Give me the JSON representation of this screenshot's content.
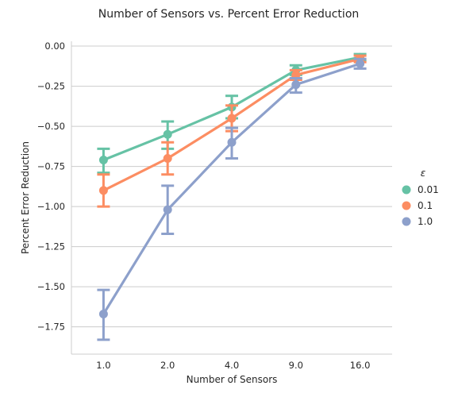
{
  "chart_data": {
    "type": "line",
    "title": "Number of Sensors vs. Percent Error Reduction",
    "xlabel": "Number of Sensors",
    "ylabel": "Percent Error Reduction",
    "categories": [
      "1.0",
      "2.0",
      "4.0",
      "9.0",
      "16.0"
    ],
    "ylim": [
      -1.92,
      0.03
    ],
    "yticks": [
      0.0,
      -0.25,
      -0.5,
      -0.75,
      -1.0,
      -1.25,
      -1.5,
      -1.75
    ],
    "ytick_labels": [
      "0.00",
      "−0.25",
      "−0.50",
      "−0.75",
      "−1.00",
      "−1.25",
      "−1.50",
      "−1.75"
    ],
    "grid": "horizontal",
    "legend": {
      "title": "ε",
      "placement": "right"
    },
    "series": [
      {
        "name": "0.01",
        "color": "#66c2a5",
        "values": [
          -0.71,
          -0.55,
          -0.38,
          -0.15,
          -0.07
        ],
        "err_low": [
          -0.79,
          -0.64,
          -0.45,
          -0.18,
          -0.09
        ],
        "err_high": [
          -0.64,
          -0.47,
          -0.31,
          -0.12,
          -0.05
        ]
      },
      {
        "name": "0.1",
        "color": "#fc8d62",
        "values": [
          -0.9,
          -0.7,
          -0.45,
          -0.18,
          -0.08
        ],
        "err_low": [
          -1.0,
          -0.8,
          -0.53,
          -0.21,
          -0.1
        ],
        "err_high": [
          -0.8,
          -0.6,
          -0.37,
          -0.15,
          -0.06
        ]
      },
      {
        "name": "1.0",
        "color": "#8da0cb",
        "values": [
          -1.67,
          -1.02,
          -0.6,
          -0.24,
          -0.11
        ],
        "err_low": [
          -1.83,
          -1.17,
          -0.7,
          -0.29,
          -0.14
        ],
        "err_high": [
          -1.52,
          -0.87,
          -0.51,
          -0.2,
          -0.08
        ]
      }
    ]
  }
}
